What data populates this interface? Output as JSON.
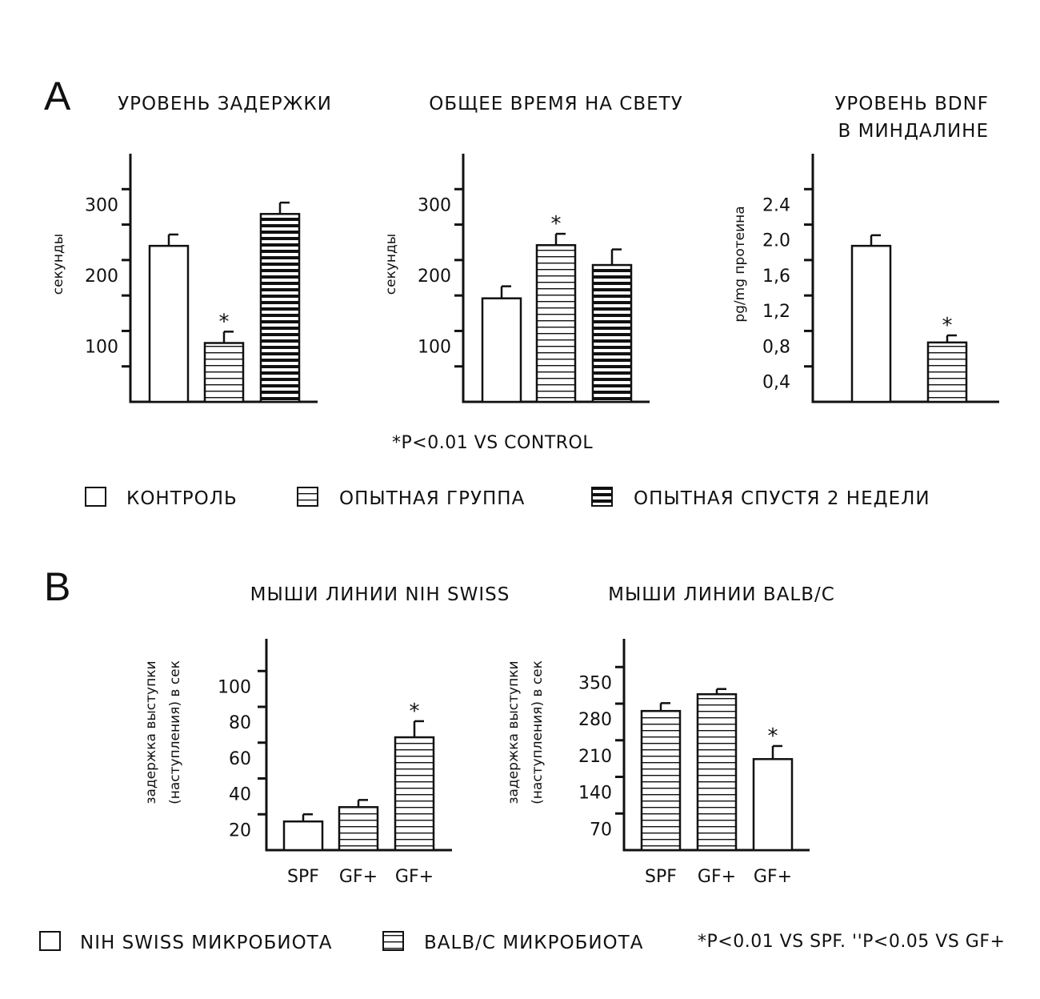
{
  "panel_a": {
    "letter": "A",
    "footnote": "*P<0.01 VS CONTROL",
    "legend": [
      {
        "label": "КОНТРОЛЬ",
        "pattern": "white"
      },
      {
        "label": "ОПЫТНАЯ ГРУППА",
        "pattern": "thin"
      },
      {
        "label": "ОПЫТНАЯ СПУСТЯ 2 НЕДЕЛИ",
        "pattern": "thick"
      }
    ]
  },
  "panel_b": {
    "letter": "B",
    "legend": [
      {
        "label": "NIH SWISS МИКРОБИОТА",
        "pattern": "white"
      },
      {
        "label": "BALB/C МИКРОБИОТА",
        "pattern": "thin"
      }
    ],
    "footnote": "*P<0.01 VS SPF. ''P<0.05 VS GF+"
  },
  "colors": {
    "ink": "#111111",
    "fill": "#ffffff"
  },
  "chart_data": [
    {
      "type": "bar",
      "title": [
        "УРОВЕНЬ ЗАДЕРЖКИ"
      ],
      "ylabel": [
        "секунды"
      ],
      "ylim": [
        0,
        350
      ],
      "yticks": [
        50,
        100,
        150,
        200,
        250,
        300
      ],
      "ytick_labels": [
        {
          "v": 100,
          "text": "100"
        },
        {
          "v": 200,
          "text": "200"
        },
        {
          "v": 300,
          "text": "300"
        }
      ],
      "bars": [
        {
          "value": 220,
          "error": 16,
          "pattern": "white",
          "sig": ""
        },
        {
          "value": 83,
          "error": 16,
          "pattern": "thin",
          "sig": "*"
        },
        {
          "value": 265,
          "error": 16,
          "pattern": "thick",
          "sig": ""
        }
      ]
    },
    {
      "type": "bar",
      "title": [
        "ОБЩЕЕ ВРЕМЯ НА СВЕТУ"
      ],
      "ylabel": [
        "секунды"
      ],
      "ylim": [
        0,
        350
      ],
      "yticks": [
        50,
        100,
        150,
        200,
        250,
        300
      ],
      "ytick_labels": [
        {
          "v": 100,
          "text": "100"
        },
        {
          "v": 200,
          "text": "200"
        },
        {
          "v": 300,
          "text": "300"
        }
      ],
      "bars": [
        {
          "value": 146,
          "error": 17,
          "pattern": "white",
          "sig": ""
        },
        {
          "value": 221,
          "error": 16,
          "pattern": "thin",
          "sig": "*"
        },
        {
          "value": 193,
          "error": 22,
          "pattern": "thick",
          "sig": ""
        }
      ]
    },
    {
      "type": "bar",
      "title": [
        "УРОВЕНЬ BDNF",
        "В МИНДАЛИНЕ"
      ],
      "ylabel": [
        "pg/mg протеина"
      ],
      "ylim": [
        0,
        2.8
      ],
      "yticks": [
        0.4,
        0.8,
        1.2,
        1.6,
        2.0,
        2.4
      ],
      "ytick_labels": [
        {
          "v": 0.4,
          "text": "0,4"
        },
        {
          "v": 0.8,
          "text": "0,8"
        },
        {
          "v": 1.2,
          "text": "1,2"
        },
        {
          "v": 1.6,
          "text": "1,6"
        },
        {
          "v": 2.0,
          "text": "2.0"
        },
        {
          "v": 2.4,
          "text": "2.4"
        }
      ],
      "bars": [
        {
          "value": 1.76,
          "error": 0.12,
          "pattern": "white",
          "sig": ""
        },
        {
          "value": 0.67,
          "error": 0.08,
          "pattern": "thin",
          "sig": "*"
        }
      ]
    },
    {
      "type": "bar",
      "title": [
        "МЫШИ ЛИНИИ NIH SWISS"
      ],
      "ylabel": [
        "задержка выступки",
        "(наступления) в сек"
      ],
      "ylim": [
        0,
        118
      ],
      "yticks": [
        20,
        40,
        60,
        80,
        100
      ],
      "ytick_labels": [
        {
          "v": 20,
          "text": "20"
        },
        {
          "v": 40,
          "text": "40"
        },
        {
          "v": 60,
          "text": "60"
        },
        {
          "v": 80,
          "text": "80"
        },
        {
          "v": 100,
          "text": "100"
        }
      ],
      "categories": [
        "SPF",
        "GF+",
        "GF+"
      ],
      "bars": [
        {
          "value": 16,
          "error": 4,
          "pattern": "white",
          "sig": ""
        },
        {
          "value": 24,
          "error": 4,
          "pattern": "thin",
          "sig": ""
        },
        {
          "value": 63,
          "error": 9,
          "pattern": "thin",
          "sig": "*"
        }
      ]
    },
    {
      "type": "bar",
      "title": [
        "МЫШИ ЛИНИИ BALB/C"
      ],
      "ylabel": [
        "задержка выступки",
        "(наступления) в сек"
      ],
      "ylim": [
        0,
        404
      ],
      "yticks": [
        70,
        140,
        210,
        280,
        350
      ],
      "ytick_labels": [
        {
          "v": 70,
          "text": "70"
        },
        {
          "v": 140,
          "text": "140"
        },
        {
          "v": 210,
          "text": "210"
        },
        {
          "v": 280,
          "text": "280"
        },
        {
          "v": 350,
          "text": "350"
        }
      ],
      "categories": [
        "SPF",
        "GF+",
        "GF+"
      ],
      "bars": [
        {
          "value": 266,
          "error": 15,
          "pattern": "thin",
          "sig": ""
        },
        {
          "value": 298,
          "error": 10,
          "pattern": "thin",
          "sig": ""
        },
        {
          "value": 174,
          "error": 25,
          "pattern": "white",
          "sig": "*"
        }
      ]
    }
  ]
}
